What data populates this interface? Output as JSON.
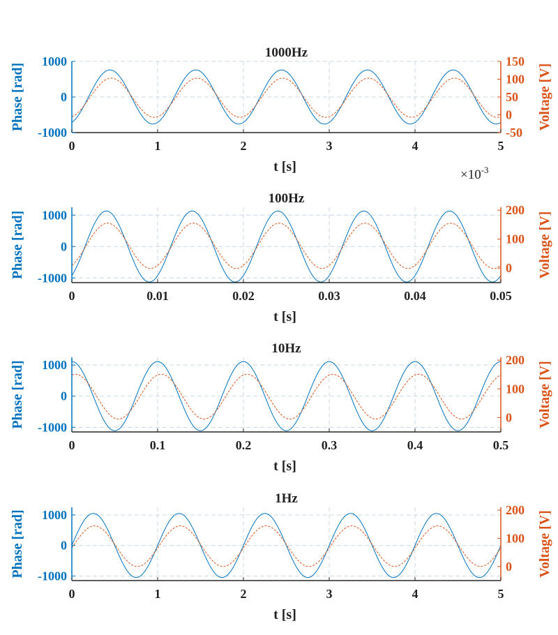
{
  "colors": {
    "phase": "#0072BD",
    "voltage": "#D95319",
    "axis": "#262626",
    "grid": "#c9d8e3"
  },
  "chart_data": [
    {
      "type": "line",
      "title": "1000Hz",
      "xlabel": "t [s]",
      "xlim": [
        0,
        0.005
      ],
      "x_ticks": [
        0,
        0.001,
        0.002,
        0.003,
        0.004,
        0.005
      ],
      "x_tick_labels": [
        "0",
        "1",
        "2",
        "3",
        "4",
        "5"
      ],
      "x_exponent_label": "×10",
      "x_exponent_power": "-3",
      "left_axis": {
        "label": "Phase [rad]",
        "ylim": [
          -1000,
          1000
        ],
        "ticks": [
          -1000,
          0,
          1000
        ],
        "tick_labels": [
          "-1000",
          "0",
          "1000"
        ]
      },
      "right_axis": {
        "label": "Voltage [V]",
        "ylim": [
          -50,
          150
        ],
        "ticks": [
          -50,
          0,
          50,
          100,
          150
        ],
        "tick_labels": [
          "-50",
          "0",
          "50",
          "100",
          "150"
        ]
      },
      "grid": true,
      "series": [
        {
          "axis": "left",
          "style": "solid",
          "frequency_hz": 1000,
          "amplitude": 760,
          "offset": 0,
          "phase_deg": -70
        },
        {
          "axis": "right",
          "style": "dashed",
          "frequency_hz": 1000,
          "amplitude": 55,
          "offset": 48,
          "phase_deg": -75
        }
      ]
    },
    {
      "type": "line",
      "title": "100Hz",
      "xlabel": "t [s]",
      "xlim": [
        0,
        0.05
      ],
      "x_ticks": [
        0,
        0.01,
        0.02,
        0.03,
        0.04,
        0.05
      ],
      "x_tick_labels": [
        "0",
        "0.01",
        "0.02",
        "0.03",
        "0.04",
        "0.05"
      ],
      "left_axis": {
        "label": "Phase [rad]",
        "ylim": [
          -1150,
          1250
        ],
        "ticks": [
          -1000,
          0,
          1000
        ],
        "tick_labels": [
          "-1000",
          "0",
          "1000"
        ]
      },
      "right_axis": {
        "label": "Voltage [V]",
        "ylim": [
          -50,
          210
        ],
        "ticks": [
          0,
          100,
          200
        ],
        "tick_labels": [
          "0",
          "100",
          "200"
        ]
      },
      "grid": true,
      "series": [
        {
          "axis": "left",
          "style": "solid",
          "frequency_hz": 100,
          "amplitude": 1130,
          "offset": 0,
          "phase_deg": -55
        },
        {
          "axis": "right",
          "style": "dashed",
          "frequency_hz": 100,
          "amplitude": 78,
          "offset": 77,
          "phase_deg": -60
        }
      ]
    },
    {
      "type": "line",
      "title": "10Hz",
      "xlabel": "t [s]",
      "xlim": [
        0,
        0.5
      ],
      "x_ticks": [
        0,
        0.1,
        0.2,
        0.3,
        0.4,
        0.5
      ],
      "x_tick_labels": [
        "0",
        "0.1",
        "0.2",
        "0.3",
        "0.4",
        "0.5"
      ],
      "left_axis": {
        "label": "Phase [rad]",
        "ylim": [
          -1150,
          1250
        ],
        "ticks": [
          -1000,
          0,
          1000
        ],
        "tick_labels": [
          "-1000",
          "0",
          "1000"
        ]
      },
      "right_axis": {
        "label": "Voltage [V]",
        "ylim": [
          -50,
          210
        ],
        "ticks": [
          0,
          100,
          200
        ],
        "tick_labels": [
          "0",
          "100",
          "200"
        ]
      },
      "grid": true,
      "series": [
        {
          "axis": "left",
          "style": "solid",
          "frequency_hz": 10,
          "amplitude": 1110,
          "offset": 0,
          "phase_deg": 90
        },
        {
          "axis": "right",
          "style": "dashed",
          "frequency_hz": 10,
          "amplitude": 78,
          "offset": 73,
          "phase_deg": 75
        }
      ]
    },
    {
      "type": "line",
      "title": "1Hz",
      "xlabel": "t [s]",
      "xlim": [
        0,
        5
      ],
      "x_ticks": [
        0,
        1,
        2,
        3,
        4,
        5
      ],
      "x_tick_labels": [
        "0",
        "1",
        "2",
        "3",
        "4",
        "5"
      ],
      "left_axis": {
        "label": "Phase [rad]",
        "ylim": [
          -1150,
          1250
        ],
        "ticks": [
          -1000,
          0,
          1000
        ],
        "tick_labels": [
          "-1000",
          "0",
          "1000"
        ]
      },
      "right_axis": {
        "label": "Voltage [V]",
        "ylim": [
          -50,
          210
        ],
        "ticks": [
          0,
          100,
          200
        ],
        "tick_labels": [
          "0",
          "100",
          "200"
        ]
      },
      "grid": true,
      "series": [
        {
          "axis": "left",
          "style": "solid",
          "frequency_hz": 1,
          "amplitude": 1050,
          "offset": 0,
          "phase_deg": 0
        },
        {
          "axis": "right",
          "style": "dashed",
          "frequency_hz": 1,
          "amplitude": 72,
          "offset": 72,
          "phase_deg": -5
        }
      ]
    }
  ]
}
